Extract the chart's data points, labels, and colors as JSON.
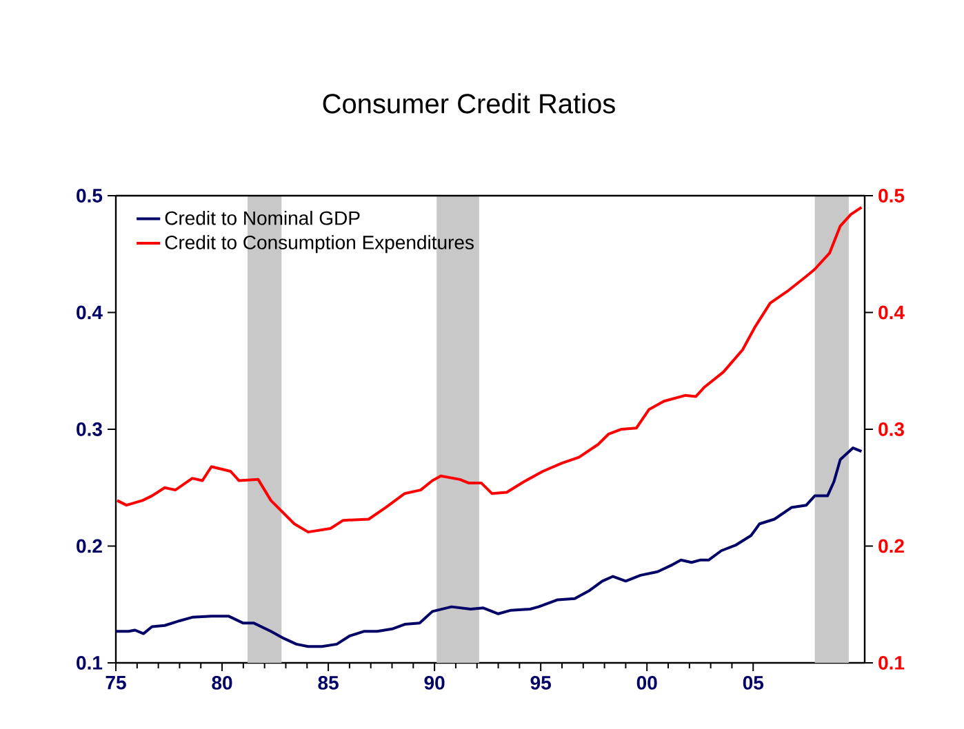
{
  "chart_data": {
    "type": "line",
    "title": "Consumer Credit Ratios",
    "xlim": [
      1975,
      2010.25
    ],
    "xticks": [
      {
        "value": 1975,
        "label": "75"
      },
      {
        "value": 1980,
        "label": "80"
      },
      {
        "value": 1985,
        "label": "85"
      },
      {
        "value": 1990,
        "label": "90"
      },
      {
        "value": 1995,
        "label": "95"
      },
      {
        "value": 2000,
        "label": "00"
      },
      {
        "value": 2005,
        "label": "05"
      }
    ],
    "ylim": [
      0.1,
      0.5
    ],
    "yticks": [
      0.1,
      0.2,
      0.3,
      0.4,
      0.5
    ],
    "y2lim": [
      0.1,
      0.5
    ],
    "y2ticks": [
      0.1,
      0.2,
      0.3,
      0.4,
      0.5
    ],
    "legend": "top left",
    "marker": "none",
    "line_style": "solid",
    "bands": [
      {
        "axis": "x",
        "from": 1981.2,
        "to": 1982.8,
        "color": "#c8c8c8"
      },
      {
        "axis": "x",
        "from": 1990.1,
        "to": 1992.1,
        "color": "#c8c8c8"
      },
      {
        "axis": "x",
        "from": 2007.9,
        "to": 2009.5,
        "color": "#c8c8c8"
      }
    ],
    "series": [
      {
        "name": "Credit to Nominal GDP",
        "color": "#000066",
        "axis": "y",
        "x": [
          1975.0,
          1975.6,
          1975.9,
          1976.3,
          1976.7,
          1977.3,
          1978.0,
          1978.6,
          1979.5,
          1980.3,
          1981.0,
          1981.5,
          1982.3,
          1982.9,
          1983.5,
          1984.05,
          1984.7,
          1985.4,
          1986.0,
          1986.7,
          1987.3,
          1988.0,
          1988.6,
          1989.3,
          1989.9,
          1990.8,
          1991.7,
          1992.3,
          1993.0,
          1993.6,
          1994.5,
          1994.9,
          1995.8,
          1996.6,
          1997.3,
          1997.9,
          1998.4,
          1999.0,
          1999.7,
          2000.5,
          2001.2,
          2001.6,
          2002.1,
          2002.5,
          2002.9,
          2003.5,
          2004.2,
          2004.9,
          2005.3,
          2006.0,
          2006.8,
          2007.5,
          2007.9,
          2008.5,
          2008.8,
          2009.1,
          2009.7,
          2010.1
        ],
        "values": [
          0.127,
          0.127,
          0.128,
          0.125,
          0.131,
          0.132,
          0.136,
          0.139,
          0.14,
          0.14,
          0.134,
          0.134,
          0.127,
          0.121,
          0.116,
          0.114,
          0.114,
          0.116,
          0.123,
          0.127,
          0.127,
          0.129,
          0.133,
          0.134,
          0.144,
          0.148,
          0.146,
          0.147,
          0.142,
          0.145,
          0.146,
          0.148,
          0.154,
          0.155,
          0.162,
          0.17,
          0.174,
          0.17,
          0.175,
          0.178,
          0.184,
          0.188,
          0.186,
          0.188,
          0.188,
          0.196,
          0.201,
          0.209,
          0.219,
          0.223,
          0.233,
          0.235,
          0.243,
          0.243,
          0.255,
          0.274,
          0.284,
          0.281
        ]
      },
      {
        "name": "Credit to Consumption Expenditures",
        "color": "#ff0000",
        "axis": "y2",
        "x": [
          1975.06,
          1975.5,
          1976.25,
          1976.7,
          1977.3,
          1977.8,
          1978.6,
          1979.07,
          1979.5,
          1980.4,
          1980.8,
          1981.7,
          1982.3,
          1983.4,
          1984.05,
          1985.1,
          1985.7,
          1986.9,
          1987.7,
          1988.6,
          1989.35,
          1989.9,
          1990.3,
          1991.2,
          1991.6,
          1992.2,
          1992.7,
          1993.4,
          1994.2,
          1995.1,
          1996.0,
          1996.8,
          1997.7,
          1998.2,
          1998.8,
          1999.5,
          2000.1,
          2000.8,
          2001.8,
          2002.3,
          2002.7,
          2003.6,
          2004.5,
          2005.1,
          2005.8,
          2006.6,
          2007.5,
          2007.9,
          2008.6,
          2009.1,
          2009.6,
          2010.1
        ],
        "values": [
          0.239,
          0.235,
          0.239,
          0.243,
          0.25,
          0.248,
          0.258,
          0.256,
          0.268,
          0.264,
          0.256,
          0.257,
          0.239,
          0.219,
          0.212,
          0.215,
          0.222,
          0.223,
          0.233,
          0.245,
          0.248,
          0.256,
          0.26,
          0.257,
          0.254,
          0.254,
          0.245,
          0.246,
          0.255,
          0.264,
          0.271,
          0.276,
          0.287,
          0.296,
          0.3,
          0.301,
          0.317,
          0.324,
          0.329,
          0.328,
          0.336,
          0.349,
          0.368,
          0.388,
          0.408,
          0.418,
          0.431,
          0.437,
          0.451,
          0.474,
          0.484,
          0.49
        ]
      }
    ]
  }
}
